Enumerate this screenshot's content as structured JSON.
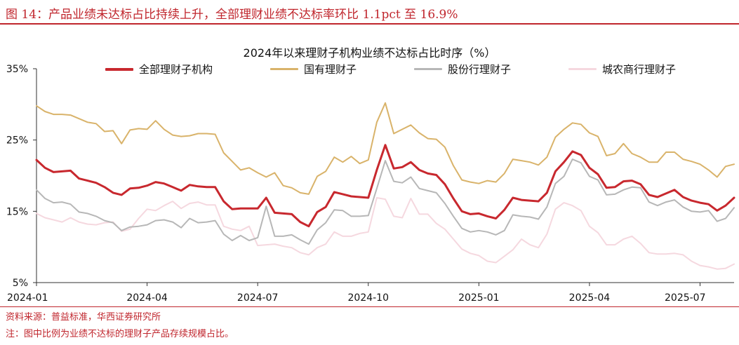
{
  "figure": {
    "title": "图 14：产品业绩未达标占比持续上升，全部理财业绩不达标率环比 1.1pct 至 16.9%",
    "source": "资料来源：普益标准，华西证券研究所",
    "note": "注：图中比例为业绩不达标的理财子产品存续规模占比。"
  },
  "chart_data": {
    "type": "line",
    "title": "2024年以来理财子机构业绩不达标占比时序（%）",
    "ylim": [
      5,
      35
    ],
    "yticks": [
      "35%",
      "25%",
      "15%",
      "5%"
    ],
    "ytick_values": [
      35,
      25,
      15,
      5
    ],
    "xticks": [
      "2024-01",
      "2024-04",
      "2024-07",
      "2024-10",
      "2025-01",
      "2025-04",
      "2025-07"
    ],
    "xtick_index": [
      0,
      13,
      26,
      39,
      52,
      65,
      78
    ],
    "grid": false,
    "legend_position": "top",
    "series": [
      {
        "name": "全部理财子机构",
        "color": "#c8282e",
        "width": 3,
        "values": [
          22.2,
          21.1,
          20.5,
          20.6,
          20.7,
          19.6,
          19.3,
          19.0,
          18.4,
          17.6,
          17.3,
          18.2,
          18.3,
          18.6,
          19.1,
          18.9,
          18.4,
          17.9,
          18.7,
          18.5,
          18.4,
          18.4,
          16.4,
          15.3,
          15.4,
          15.4,
          15.4,
          16.9,
          14.8,
          14.7,
          14.6,
          13.5,
          12.9,
          14.9,
          15.6,
          17.7,
          17.4,
          17.1,
          17.0,
          16.9,
          20.8,
          24.3,
          21.0,
          21.2,
          21.9,
          20.8,
          20.3,
          20.1,
          18.8,
          16.8,
          15.0,
          14.6,
          14.7,
          14.3,
          14.0,
          15.2,
          16.9,
          16.6,
          16.5,
          16.4,
          17.6,
          20.6,
          21.9,
          23.4,
          22.9,
          21.1,
          20.2,
          18.3,
          18.4,
          19.2,
          19.3,
          18.8,
          17.3,
          17.0,
          17.5,
          18.0,
          17.0,
          16.5,
          16.2,
          16.0,
          15.1,
          15.8,
          16.9
        ]
      },
      {
        "name": "国有理财子",
        "color": "#d9b36a",
        "width": 2,
        "values": [
          29.8,
          29.0,
          28.6,
          28.6,
          28.5,
          28.0,
          27.5,
          27.3,
          26.2,
          26.3,
          24.5,
          26.4,
          26.6,
          26.5,
          27.7,
          26.5,
          25.7,
          25.5,
          25.6,
          25.9,
          25.9,
          25.8,
          23.2,
          22.0,
          20.8,
          21.1,
          20.4,
          19.8,
          20.4,
          18.6,
          18.3,
          17.6,
          17.4,
          19.9,
          20.6,
          22.6,
          21.9,
          22.7,
          21.7,
          22.2,
          27.5,
          30.2,
          25.9,
          26.5,
          27.1,
          26.0,
          25.2,
          25.1,
          24.0,
          21.4,
          19.4,
          19.1,
          18.9,
          19.3,
          19.1,
          20.3,
          22.3,
          22.1,
          21.9,
          21.5,
          22.6,
          25.4,
          26.5,
          27.4,
          27.2,
          26.0,
          25.5,
          22.8,
          23.1,
          24.5,
          23.1,
          22.6,
          21.9,
          21.9,
          23.3,
          23.3,
          22.3,
          22.0,
          21.6,
          20.8,
          19.8,
          21.3,
          21.6
        ]
      },
      {
        "name": "股份行理财子",
        "color": "#b7b7b7",
        "width": 2,
        "values": [
          18.0,
          16.8,
          16.2,
          16.3,
          16.0,
          14.9,
          14.7,
          14.3,
          13.7,
          13.4,
          12.3,
          12.8,
          12.9,
          13.1,
          13.7,
          13.8,
          13.5,
          12.7,
          14.0,
          13.4,
          13.5,
          13.7,
          11.8,
          10.9,
          11.6,
          10.9,
          11.3,
          15.7,
          11.5,
          11.5,
          11.7,
          11.0,
          10.4,
          12.4,
          13.4,
          15.2,
          15.1,
          14.3,
          14.3,
          14.4,
          18.2,
          22.1,
          19.2,
          19.0,
          19.8,
          18.2,
          17.9,
          17.6,
          16.1,
          14.3,
          12.6,
          12.1,
          12.3,
          12.1,
          11.7,
          12.3,
          14.5,
          14.3,
          14.2,
          13.9,
          15.6,
          18.9,
          19.9,
          22.3,
          21.8,
          19.9,
          19.4,
          17.3,
          17.4,
          18.0,
          18.4,
          18.3,
          16.3,
          15.8,
          16.3,
          16.6,
          15.6,
          15.0,
          14.9,
          15.1,
          13.6,
          14.0,
          15.5
        ]
      },
      {
        "name": "城农商行理财子",
        "color": "#f5d8df",
        "width": 2,
        "values": [
          14.7,
          14.1,
          13.8,
          13.5,
          14.1,
          13.5,
          13.2,
          13.1,
          13.4,
          13.5,
          12.2,
          12.5,
          14.0,
          15.3,
          15.1,
          15.8,
          16.4,
          15.4,
          16.1,
          16.3,
          15.9,
          15.9,
          12.9,
          12.5,
          12.3,
          12.9,
          10.2,
          10.3,
          10.4,
          10.1,
          9.9,
          9.2,
          8.9,
          9.9,
          10.4,
          12.1,
          11.5,
          11.5,
          11.9,
          12.1,
          16.9,
          16.7,
          14.3,
          14.1,
          16.8,
          14.6,
          14.6,
          13.3,
          12.5,
          11.1,
          9.7,
          9.1,
          8.8,
          8.0,
          7.8,
          8.7,
          9.6,
          11.1,
          10.3,
          9.9,
          11.8,
          15.3,
          16.2,
          15.8,
          15.1,
          12.9,
          12.0,
          10.3,
          10.3,
          11.1,
          11.5,
          10.5,
          9.2,
          9.0,
          9.0,
          9.1,
          8.9,
          8.0,
          7.4,
          7.2,
          6.9,
          7.0,
          7.6
        ]
      }
    ]
  }
}
